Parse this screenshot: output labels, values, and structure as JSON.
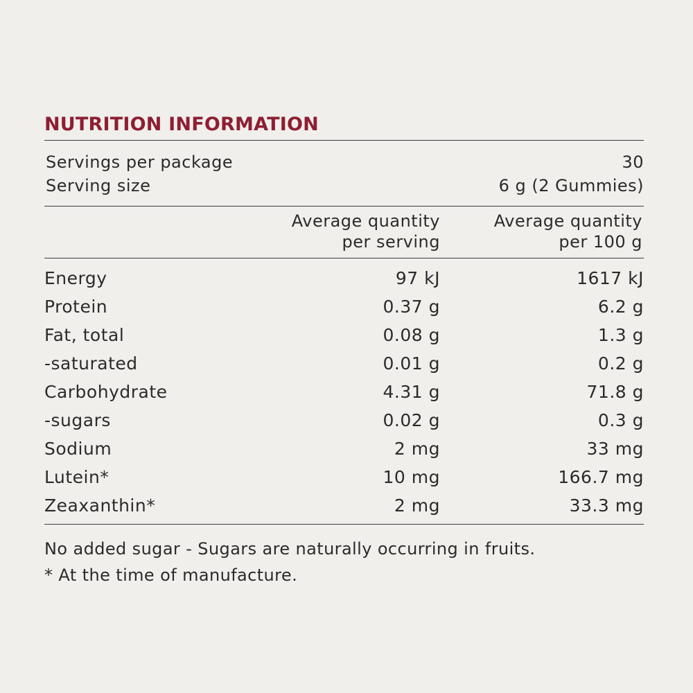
{
  "title": "NUTRITION INFORMATION",
  "servings": {
    "per_package_label": "Servings per package",
    "per_package_value": "30",
    "size_label": "Serving size",
    "size_value": "6 g (2 Gummies)"
  },
  "headers": {
    "per_serving_line1": "Average quantity",
    "per_serving_line2": "per serving",
    "per_100g_line1": "Average quantity",
    "per_100g_line2": "per 100 g"
  },
  "rows": [
    {
      "name": "Energy",
      "per_serving": "97 kJ",
      "per_100g": "1617 kJ"
    },
    {
      "name": "Protein",
      "per_serving": "0.37 g",
      "per_100g": "6.2 g"
    },
    {
      "name": "Fat, total",
      "per_serving": "0.08 g",
      "per_100g": "1.3 g"
    },
    {
      "name": "-saturated",
      "per_serving": "0.01 g",
      "per_100g": "0.2 g"
    },
    {
      "name": "Carbohydrate",
      "per_serving": "4.31 g",
      "per_100g": "71.8 g"
    },
    {
      "name": "-sugars",
      "per_serving": "0.02 g",
      "per_100g": "0.3 g"
    },
    {
      "name": "Sodium",
      "per_serving": "2 mg",
      "per_100g": "33 mg"
    },
    {
      "name": "Lutein*",
      "per_serving": "10 mg",
      "per_100g": "166.7 mg"
    },
    {
      "name": "Zeaxanthin*",
      "per_serving": "2 mg",
      "per_100g": "33.3 mg"
    }
  ],
  "notes": {
    "line1": "No added sugar - Sugars are naturally occurring in fruits.",
    "line2": "* At the time of manufacture."
  },
  "colors": {
    "title": "#8e1f33",
    "background": "#f1efeb",
    "text": "#2b2b2b"
  }
}
